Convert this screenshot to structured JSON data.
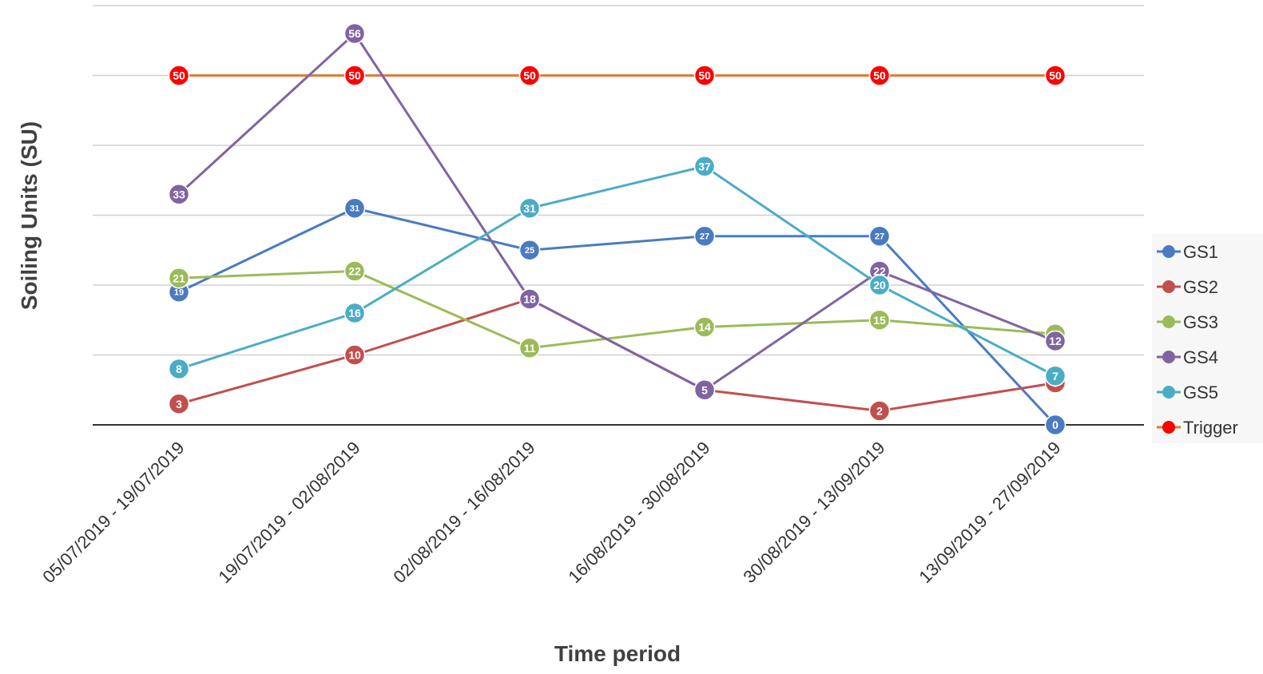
{
  "chart_data": {
    "type": "line",
    "title": "",
    "xlabel": "Time period",
    "ylabel": "Soiling Units (SU)",
    "categories": [
      "05/07/2019 - 19/07/2019",
      "19/07/2019 - 02/08/2019",
      "02/08/2019 - 16/08/2019",
      "16/08/2019 - 30/08/2019",
      "30/08/2019 - 13/09/2019",
      "13/09/2019 - 27/09/2019"
    ],
    "ylim": [
      0,
      60
    ],
    "y_gridlines": [
      10,
      20,
      30,
      40,
      50,
      60
    ],
    "y_tick_labels_visible": false,
    "grid": true,
    "legend_position": "right",
    "series": [
      {
        "name": "GS1",
        "color": "#4a7bc0",
        "values": [
          19,
          31,
          25,
          27,
          27,
          0
        ]
      },
      {
        "name": "GS2",
        "color": "#c0504d",
        "values": [
          3,
          10,
          18,
          5,
          2,
          6
        ]
      },
      {
        "name": "GS3",
        "color": "#9bbb59",
        "values": [
          21,
          22,
          11,
          14,
          15,
          13
        ]
      },
      {
        "name": "GS4",
        "color": "#8064a2",
        "values": [
          33,
          56,
          18,
          5,
          22,
          12
        ]
      },
      {
        "name": "GS5",
        "color": "#4bacc6",
        "values": [
          8,
          16,
          31,
          37,
          20,
          7
        ]
      },
      {
        "name": "Trigger",
        "color": "#ff0000",
        "line_color": "#e07b39",
        "values": [
          50,
          50,
          50,
          50,
          50,
          50
        ]
      }
    ]
  }
}
